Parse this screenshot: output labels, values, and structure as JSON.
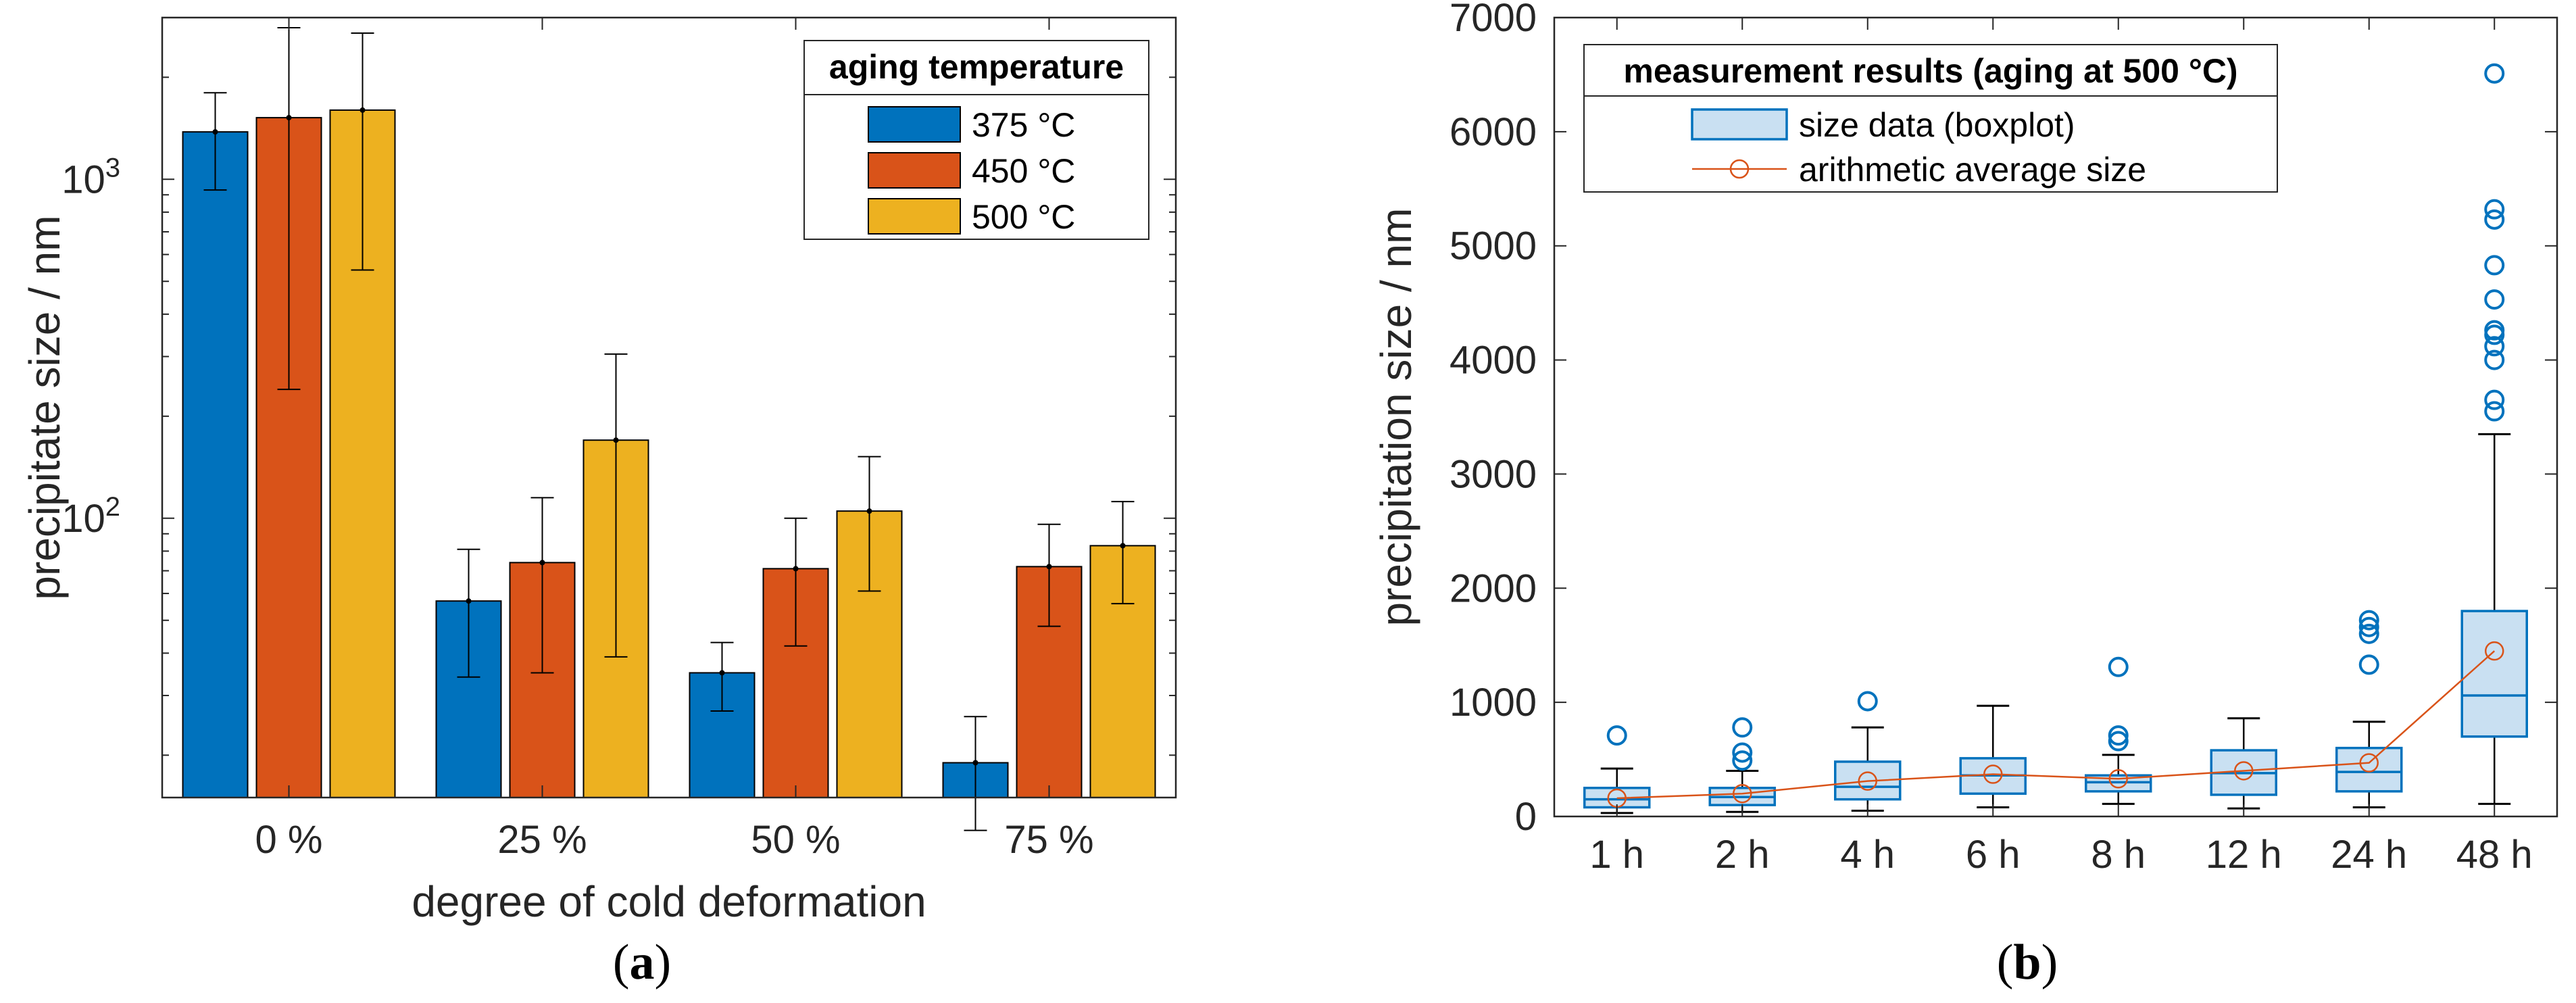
{
  "chart_data": [
    {
      "type": "bar",
      "panel_label": "(a)",
      "panel_letter": "a",
      "xlabel": "degree of cold deformation",
      "ylabel": "precipitate size / nm",
      "yscale": "log",
      "ylim": [
        15,
        3000
      ],
      "ytick_labels": [
        {
          "value": 100,
          "base": "10",
          "exp": "2"
        },
        {
          "value": 1000,
          "base": "10",
          "exp": "3"
        }
      ],
      "categories": [
        "0 %",
        "25 %",
        "50 %",
        "75 %"
      ],
      "legend": {
        "title": "aging temperature",
        "position": "top-right"
      },
      "series": [
        {
          "name": "375 °C",
          "color": "#0072BD",
          "values": [
            1380,
            57,
            35,
            19
          ],
          "err_low": [
            930,
            34,
            27,
            12
          ],
          "err_high": [
            1800,
            81,
            43,
            26
          ]
        },
        {
          "name": "450 °C",
          "color": "#D95319",
          "values": [
            1520,
            74,
            71,
            72
          ],
          "err_low": [
            240,
            35,
            42,
            48
          ],
          "err_high": [
            2800,
            115,
            100,
            96
          ]
        },
        {
          "name": "500 °C",
          "color": "#EDB120",
          "values": [
            1600,
            170,
            105,
            83
          ],
          "err_low": [
            540,
            39,
            61,
            56
          ],
          "err_high": [
            2700,
            305,
            152,
            112
          ]
        }
      ]
    },
    {
      "type": "box",
      "panel_label": "(b)",
      "panel_letter": "b",
      "xlabel": "",
      "ylabel": "precipitation size / nm",
      "ylim": [
        0,
        7000
      ],
      "yticks": [
        0,
        1000,
        2000,
        3000,
        4000,
        5000,
        6000,
        7000
      ],
      "categories": [
        "1 h",
        "2 h",
        "4 h",
        "6 h",
        "8 h",
        "12 h",
        "24 h",
        "48 h"
      ],
      "legend": {
        "title": "measurement results (aging at 500 °C)",
        "position": "top-left"
      },
      "series_names": [
        "size data (boxplot)",
        "arithmetic average size"
      ],
      "box_color": "#0072BD",
      "box_fill": "#C9E0F2",
      "mean_color": "#D95319",
      "boxes": [
        {
          "whisker_low": 30,
          "q1": 80,
          "median": 150,
          "q3": 250,
          "whisker_high": 420,
          "outliers": [
            710
          ]
        },
        {
          "whisker_low": 40,
          "q1": 100,
          "median": 170,
          "q3": 250,
          "whisker_high": 400,
          "outliers": [
            490,
            560,
            780
          ]
        },
        {
          "whisker_low": 50,
          "q1": 150,
          "median": 260,
          "q3": 480,
          "whisker_high": 780,
          "outliers": [
            1010
          ]
        },
        {
          "whisker_low": 80,
          "q1": 200,
          "median": 360,
          "q3": 510,
          "whisker_high": 970,
          "outliers": []
        },
        {
          "whisker_low": 110,
          "q1": 220,
          "median": 300,
          "q3": 360,
          "whisker_high": 540,
          "outliers": [
            660,
            710,
            1310
          ]
        },
        {
          "whisker_low": 70,
          "q1": 190,
          "median": 380,
          "q3": 580,
          "whisker_high": 860,
          "outliers": []
        },
        {
          "whisker_low": 80,
          "q1": 220,
          "median": 390,
          "q3": 600,
          "whisker_high": 830,
          "outliers": [
            1330,
            1600,
            1660,
            1720
          ]
        },
        {
          "whisker_low": 110,
          "q1": 700,
          "median": 1060,
          "q3": 1800,
          "whisker_high": 3350,
          "outliers": [
            3550,
            3650,
            4000,
            4120,
            4220,
            4260,
            4530,
            4830,
            5230,
            5320,
            6510
          ]
        }
      ],
      "means": [
        160,
        200,
        310,
        370,
        330,
        400,
        470,
        1450
      ]
    }
  ]
}
